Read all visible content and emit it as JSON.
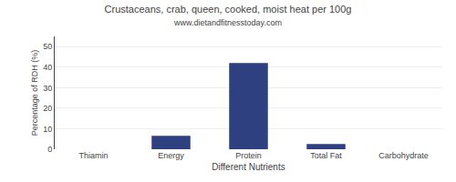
{
  "chart_data": {
    "type": "bar",
    "title": "Crustaceans, crab, queen, cooked, moist heat per 100g",
    "subtitle": "www.dietandfitnesstoday.com",
    "xlabel": "Different Nutrients",
    "ylabel": "Percentage of RDH (%)",
    "categories": [
      "Thiamin",
      "Energy",
      "Protein",
      "Total Fat",
      "Carbohydrate"
    ],
    "values": [
      0.0,
      6.5,
      42.0,
      2.5,
      0.0
    ],
    "color": "#2e4080",
    "ylim": [
      0,
      55
    ],
    "yticks": [
      0,
      10,
      20,
      30,
      40,
      50
    ],
    "grid": true
  }
}
